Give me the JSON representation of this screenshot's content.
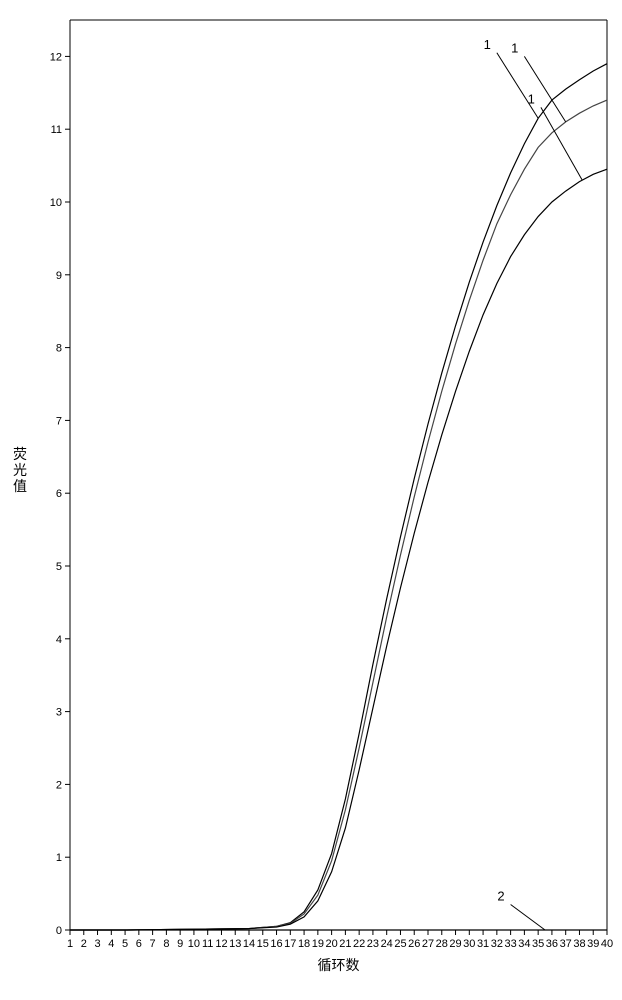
{
  "chart": {
    "type": "line",
    "background_color": "#ffffff",
    "axis_color": "#000000",
    "tick_fontsize": 11,
    "title_fontsize": 14,
    "x": {
      "label": "循环数",
      "min": 1,
      "max": 40,
      "ticks": [
        1,
        2,
        3,
        4,
        5,
        6,
        7,
        8,
        9,
        10,
        11,
        12,
        13,
        14,
        15,
        16,
        17,
        18,
        19,
        20,
        21,
        22,
        23,
        24,
        25,
        26,
        27,
        28,
        29,
        30,
        31,
        32,
        33,
        34,
        35,
        36,
        37,
        38,
        39,
        40
      ]
    },
    "y": {
      "label": "荧光值",
      "min": 0,
      "max": 12.5,
      "ticks": [
        0,
        1,
        2,
        3,
        4,
        5,
        6,
        7,
        8,
        9,
        10,
        11,
        12
      ]
    },
    "series": [
      {
        "name": "curve-1a",
        "color": "#000000",
        "callout": {
          "label": "1",
          "at_x": 35,
          "dx": -3,
          "dy": 0.9
        },
        "points": [
          [
            1,
            0.0
          ],
          [
            5,
            0.0
          ],
          [
            10,
            0.01
          ],
          [
            14,
            0.02
          ],
          [
            16,
            0.05
          ],
          [
            17,
            0.1
          ],
          [
            18,
            0.25
          ],
          [
            19,
            0.55
          ],
          [
            20,
            1.05
          ],
          [
            21,
            1.8
          ],
          [
            22,
            2.7
          ],
          [
            23,
            3.65
          ],
          [
            24,
            4.55
          ],
          [
            25,
            5.4
          ],
          [
            26,
            6.2
          ],
          [
            27,
            6.95
          ],
          [
            28,
            7.65
          ],
          [
            29,
            8.3
          ],
          [
            30,
            8.9
          ],
          [
            31,
            9.45
          ],
          [
            32,
            9.95
          ],
          [
            33,
            10.4
          ],
          [
            34,
            10.8
          ],
          [
            35,
            11.15
          ],
          [
            36,
            11.4
          ],
          [
            37,
            11.55
          ],
          [
            38,
            11.68
          ],
          [
            39,
            11.8
          ],
          [
            40,
            11.9
          ]
        ]
      },
      {
        "name": "curve-1b",
        "color": "#444444",
        "callout": {
          "label": "1",
          "at_x": 37,
          "dx": -3,
          "dy": 0.9
        },
        "points": [
          [
            1,
            0.0
          ],
          [
            5,
            0.0
          ],
          [
            10,
            0.01
          ],
          [
            14,
            0.02
          ],
          [
            16,
            0.05
          ],
          [
            17,
            0.09
          ],
          [
            18,
            0.22
          ],
          [
            19,
            0.48
          ],
          [
            20,
            0.95
          ],
          [
            21,
            1.65
          ],
          [
            22,
            2.5
          ],
          [
            23,
            3.4
          ],
          [
            24,
            4.3
          ],
          [
            25,
            5.15
          ],
          [
            26,
            5.95
          ],
          [
            27,
            6.7
          ],
          [
            28,
            7.4
          ],
          [
            29,
            8.05
          ],
          [
            30,
            8.65
          ],
          [
            31,
            9.2
          ],
          [
            32,
            9.7
          ],
          [
            33,
            10.1
          ],
          [
            34,
            10.45
          ],
          [
            35,
            10.75
          ],
          [
            36,
            10.95
          ],
          [
            37,
            11.1
          ],
          [
            38,
            11.22
          ],
          [
            39,
            11.32
          ],
          [
            40,
            11.4
          ]
        ]
      },
      {
        "name": "curve-1c",
        "color": "#000000",
        "callout": {
          "label": "1",
          "at_x": 38.2,
          "dx": -3,
          "dy": 1.0
        },
        "points": [
          [
            1,
            0.0
          ],
          [
            5,
            0.0
          ],
          [
            10,
            0.01
          ],
          [
            14,
            0.02
          ],
          [
            16,
            0.04
          ],
          [
            17,
            0.08
          ],
          [
            18,
            0.18
          ],
          [
            19,
            0.4
          ],
          [
            20,
            0.8
          ],
          [
            21,
            1.4
          ],
          [
            22,
            2.2
          ],
          [
            23,
            3.05
          ],
          [
            24,
            3.9
          ],
          [
            25,
            4.7
          ],
          [
            26,
            5.45
          ],
          [
            27,
            6.15
          ],
          [
            28,
            6.8
          ],
          [
            29,
            7.4
          ],
          [
            30,
            7.95
          ],
          [
            31,
            8.45
          ],
          [
            32,
            8.88
          ],
          [
            33,
            9.25
          ],
          [
            34,
            9.55
          ],
          [
            35,
            9.8
          ],
          [
            36,
            10.0
          ],
          [
            37,
            10.15
          ],
          [
            38,
            10.28
          ],
          [
            39,
            10.38
          ],
          [
            40,
            10.45
          ]
        ]
      },
      {
        "name": "curve-2",
        "color": "#000000",
        "callout": {
          "label": "2",
          "at_x": 35.5,
          "dx": -2.5,
          "dy": 0.35
        },
        "points": [
          [
            1,
            0.0
          ],
          [
            5,
            0.0
          ],
          [
            10,
            0.0
          ],
          [
            15,
            0.0
          ],
          [
            20,
            0.0
          ],
          [
            25,
            0.0
          ],
          [
            30,
            0.0
          ],
          [
            35,
            0.0
          ],
          [
            40,
            0.0
          ]
        ]
      }
    ]
  }
}
